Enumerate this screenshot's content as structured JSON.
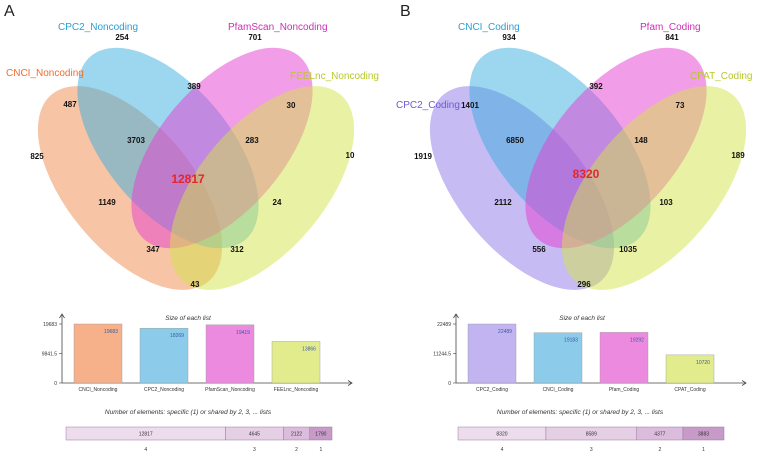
{
  "chart_data": [
    {
      "panel": "A",
      "type": "venn",
      "sets": [
        {
          "name": "CNCI_Noncoding",
          "color": "#f08a4b",
          "label_color": "#f26b2b"
        },
        {
          "name": "CPC2_Noncoding",
          "color": "#3aaee0",
          "label_color": "#2a9fd6"
        },
        {
          "name": "PfamScan_Noncoding",
          "color": "#e53bcf",
          "label_color": "#cc2fb6"
        },
        {
          "name": "FEELnc_Noncoding",
          "color": "#d4e44a",
          "label_color": "#b8c92a"
        }
      ],
      "regions": [
        {
          "sets": "CPC2",
          "value": "254"
        },
        {
          "sets": "Pfam",
          "value": "701"
        },
        {
          "sets": "CNCI+CPC2",
          "value": "487"
        },
        {
          "sets": "CPC2+Pfam",
          "value": "389"
        },
        {
          "sets": "Pfam+FEELnc",
          "value": "30"
        },
        {
          "sets": "CNCI",
          "value": "825"
        },
        {
          "sets": "CNCI+CPC2+Pfam",
          "value": "3703"
        },
        {
          "sets": "CPC2+Pfam+FEELnc",
          "value": "283"
        },
        {
          "sets": "FEELnc",
          "value": "10"
        },
        {
          "sets": "all",
          "value": "12817"
        },
        {
          "sets": "CNCI+Pfam",
          "value": "1149"
        },
        {
          "sets": "Pfam+FEELnc+CNCI",
          "value": "347"
        },
        {
          "sets": "CNCI+CPC2+FEELnc",
          "value": "312"
        },
        {
          "sets": "CPC2+FEELnc",
          "value": "24"
        },
        {
          "sets": "CNCI+FEELnc",
          "value": "43"
        }
      ],
      "size_chart": {
        "type": "bar",
        "title": "Size of each list",
        "categories": [
          "CNCI_Noncoding",
          "CPC2_Noncoding",
          "PfamScan_Noncoding",
          "FEELnc_Noncoding"
        ],
        "values": [
          19683,
          18269,
          19419,
          13866
        ],
        "yticks": [
          "19683",
          "9841.5",
          "0"
        ],
        "ymax": 19683,
        "colors": [
          "#f6b08a",
          "#8ccbea",
          "#ec8ae0",
          "#e2ec8c"
        ]
      },
      "shared_chart": {
        "type": "bar",
        "title": "Number of elements: specific (1) or shared by 2, 3, ... lists",
        "levels": [
          "4",
          "3",
          "2",
          "1"
        ],
        "values": [
          12817,
          4645,
          2122,
          1790
        ],
        "colors": [
          "#ecdcec",
          "#e5cfe5",
          "#dcbcdc",
          "#c79ac7"
        ]
      }
    },
    {
      "panel": "B",
      "type": "venn",
      "sets": [
        {
          "name": "CPC2_Coding",
          "color": "#8e78e8",
          "label_color": "#6f5ad4"
        },
        {
          "name": "CNCI_Coding",
          "color": "#3aaee0",
          "label_color": "#2a9fd6"
        },
        {
          "name": "Pfam_Coding",
          "color": "#e53bcf",
          "label_color": "#cc2fb6"
        },
        {
          "name": "CPAT_Coding",
          "color": "#d4e44a",
          "label_color": "#b8c92a"
        }
      ],
      "regions": [
        {
          "sets": "CNCI",
          "value": "934"
        },
        {
          "sets": "Pfam",
          "value": "841"
        },
        {
          "sets": "CNCI+Pfam",
          "value": "392"
        },
        {
          "sets": "CPC2+CNCI",
          "value": "1401"
        },
        {
          "sets": "Pfam+CPAT",
          "value": "73"
        },
        {
          "sets": "CPC2",
          "value": "1919"
        },
        {
          "sets": "CPC2+CNCI+Pfam",
          "value": "6850"
        },
        {
          "sets": "CNCI+Pfam+CPAT",
          "value": "148"
        },
        {
          "sets": "CPAT",
          "value": "189"
        },
        {
          "sets": "all",
          "value": "8320"
        },
        {
          "sets": "CPC2+Pfam",
          "value": "2112"
        },
        {
          "sets": "CNCI+CPAT",
          "value": "103"
        },
        {
          "sets": "CPC2+Pfam+CPAT",
          "value": "556"
        },
        {
          "sets": "CPC2+CNCI+CPAT",
          "value": "1035"
        },
        {
          "sets": "CPC2+CPAT",
          "value": "296"
        }
      ],
      "size_chart": {
        "type": "bar",
        "title": "Size of each list",
        "categories": [
          "CPC2_Coding",
          "CNCI_Coding",
          "Pfam_Coding",
          "CPAT_Coding"
        ],
        "values": [
          22489,
          19183,
          19292,
          10720
        ],
        "yticks": [
          "22489",
          "11244.5",
          "0"
        ],
        "ymax": 22489,
        "colors": [
          "#c2b4f0",
          "#8ccbea",
          "#ec8ae0",
          "#e2ec8c"
        ]
      },
      "shared_chart": {
        "type": "bar",
        "title": "Number of elements: specific (1) or shared by 2, 3, ... lists",
        "levels": [
          "4",
          "3",
          "2",
          "1"
        ],
        "values": [
          8320,
          8589,
          4377,
          3883
        ],
        "colors": [
          "#ecdcec",
          "#e5cfe5",
          "#dcbcdc",
          "#c79ac7"
        ]
      }
    }
  ]
}
